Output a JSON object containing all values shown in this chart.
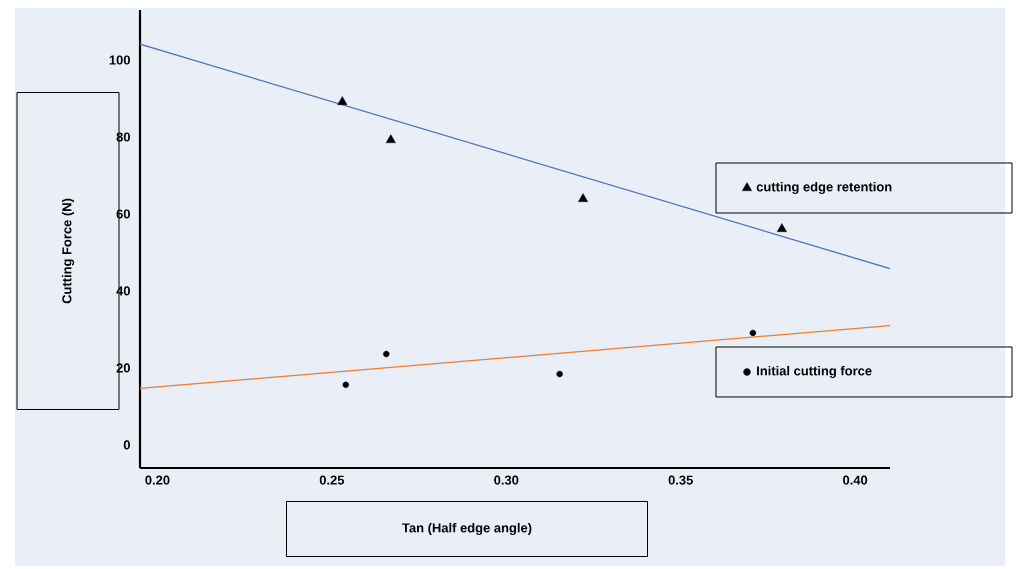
{
  "chart_data": {
    "type": "scatter",
    "xlabel": "Tan (Half edge angle)",
    "ylabel": "Cutting Force (N)",
    "xlim": [
      0.195,
      0.41
    ],
    "ylim": [
      -6,
      113
    ],
    "xticks": [
      {
        "value": 0.2,
        "label": "0.20"
      },
      {
        "value": 0.25,
        "label": "0.25"
      },
      {
        "value": 0.3,
        "label": "0.30"
      },
      {
        "value": 0.35,
        "label": "0.35"
      },
      {
        "value": 0.4,
        "label": "0.40"
      }
    ],
    "yticks": [
      0,
      20,
      40,
      60,
      80,
      100
    ],
    "legend": "right",
    "series": [
      {
        "name": "cutting edge retention",
        "marker": "triangle",
        "color": "#000000",
        "x": [
          0.253,
          0.2669,
          0.322,
          0.379
        ],
        "values": [
          89.1,
          79.2,
          63.9,
          56.1
        ]
      },
      {
        "name": "Initial cutting force",
        "marker": "circle",
        "color": "#000000",
        "x": [
          0.254,
          0.2656,
          0.3153,
          0.3707
        ],
        "values": [
          15.6,
          23.6,
          18.4,
          29.1
        ]
      },
      {
        "type": "line",
        "marker": "none",
        "line_style": "solid",
        "color": "#4472c4",
        "x": [
          0.195,
          0.41
        ],
        "values": [
          104.1,
          45.8
        ]
      },
      {
        "type": "line",
        "marker": "none",
        "line_style": "solid",
        "color": "#ed7d31",
        "x": [
          0.195,
          0.41
        ],
        "values": [
          14.7,
          31.0
        ]
      }
    ]
  }
}
